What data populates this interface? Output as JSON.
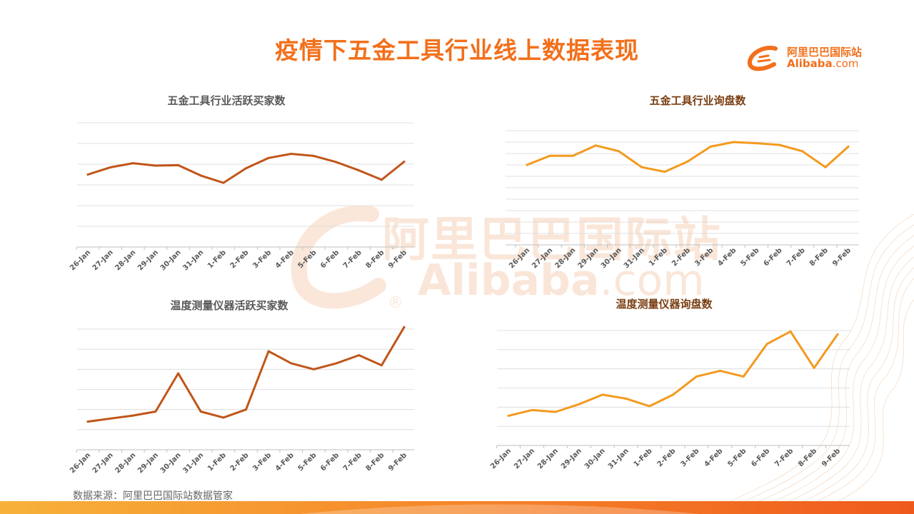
{
  "header": {
    "title": "疫情下五金工具行业线上数据表现",
    "logo_cn": "阿里巴巴国际站",
    "logo_en": "Alibaba",
    "logo_dotcom": ".com"
  },
  "watermark": {
    "cn": "阿里巴巴国际站",
    "en": "Alibaba",
    "dotcom": ".com",
    "reg": "®"
  },
  "colors": {
    "title": "#f2701c",
    "series_dark": "#c0561a",
    "series_light": "#f39a1e",
    "grid": "#d9d9d9",
    "axis": "#bfbfbf"
  },
  "footer": {
    "source": "数据来源：阿里巴巴国际站数据管家"
  },
  "chart_data": [
    {
      "type": "line",
      "title": "五金工具行业活跃买家数",
      "categories": [
        "26-Jan",
        "27-Jan",
        "28-Jan",
        "29-Jan",
        "30-Jan",
        "31-Jan",
        "1-Feb",
        "2-Feb",
        "3-Feb",
        "4-Feb",
        "5-Feb",
        "6-Feb",
        "7-Feb",
        "8-Feb",
        "9-Feb"
      ],
      "series": [
        {
          "values": [
            3.5,
            3.85,
            4.05,
            3.93,
            3.95,
            3.45,
            3.1,
            3.8,
            4.3,
            4.5,
            4.4,
            4.1,
            3.7,
            3.25,
            4.12
          ]
        }
      ],
      "ylim": [
        0,
        6
      ],
      "grid": true,
      "y_axis_labels_shown": false
    },
    {
      "type": "line",
      "title": "五金工具行业询盘数",
      "categories": [
        "26-Jan",
        "27-Jan",
        "28-Jan",
        "29-Jan",
        "30-Jan",
        "31-Jan",
        "1-Feb",
        "2-Feb",
        "3-Feb",
        "4-Feb",
        "5-Feb",
        "6-Feb",
        "7-Feb",
        "8-Feb",
        "9-Feb"
      ],
      "series": [
        {
          "values": [
            7.0,
            7.8,
            7.8,
            8.7,
            8.2,
            6.8,
            6.4,
            7.3,
            8.6,
            9.0,
            8.9,
            8.75,
            8.2,
            6.8,
            8.6
          ]
        }
      ],
      "ylim": [
        0,
        10
      ],
      "grid": true,
      "y_axis_labels_shown": false
    },
    {
      "type": "line",
      "title": "温度测量仪器活跃买家数",
      "categories": [
        "26-Jan",
        "27-Jan",
        "28-Jan",
        "29-Jan",
        "30-Jan",
        "31-Jan",
        "1-Feb",
        "2-Feb",
        "3-Feb",
        "4-Feb",
        "5-Feb",
        "6-Feb",
        "7-Feb",
        "8-Feb",
        "9-Feb"
      ],
      "series": [
        {
          "values": [
            1.4,
            1.55,
            1.7,
            1.9,
            3.8,
            1.9,
            1.6,
            2.0,
            4.9,
            4.3,
            4.0,
            4.3,
            4.7,
            4.2,
            6.1
          ]
        }
      ],
      "ylim": [
        0,
        6
      ],
      "grid": true,
      "y_axis_labels_shown": false
    },
    {
      "type": "line",
      "title": "温度测量仪器询盘数",
      "categories": [
        "26-Jan",
        "27-Jan",
        "28-Jan",
        "29-Jan",
        "30-Jan",
        "31-Jan",
        "1-Feb",
        "2-Feb",
        "3-Feb",
        "4-Feb",
        "5-Feb",
        "6-Feb",
        "7-Feb",
        "8-Feb",
        "9-Feb"
      ],
      "series": [
        {
          "values": [
            1.55,
            1.85,
            1.75,
            2.15,
            2.65,
            2.45,
            2.05,
            2.65,
            3.6,
            3.9,
            3.6,
            5.3,
            5.95,
            4.05,
            5.8
          ]
        }
      ],
      "ylim": [
        0,
        6
      ],
      "grid": true,
      "y_axis_labels_shown": false
    }
  ]
}
